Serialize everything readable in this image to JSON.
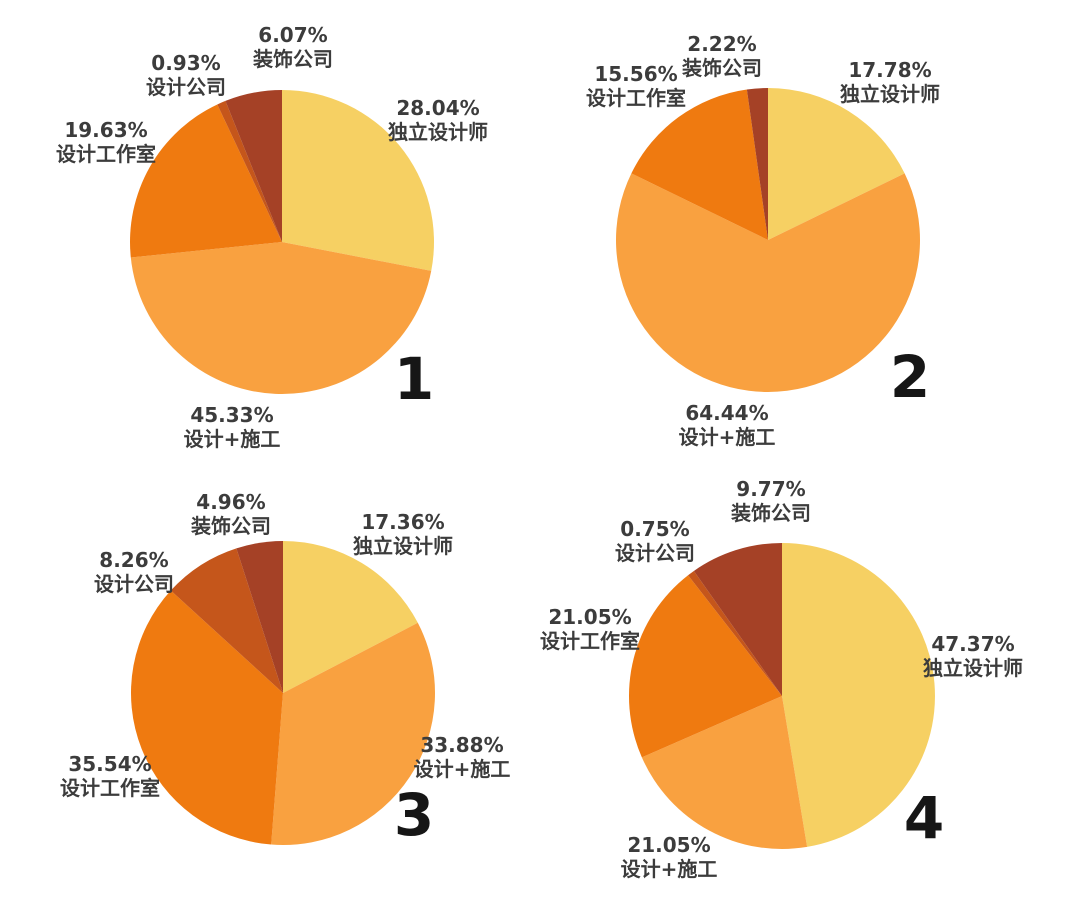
{
  "figure": {
    "background_color": "#ffffff",
    "text_color": "#3c3c3c",
    "number_color": "#161616"
  },
  "palette": {
    "independent-designer": "#F6D063",
    "design-construction": "#F9A140",
    "design-studio": "#EF7A10",
    "design-company": "#C5561B",
    "decoration-company": "#A54126"
  },
  "chart_data": [
    {
      "type": "pie",
      "index_label": "1",
      "start_angle_deg": 0,
      "direction": "clockwise",
      "slices": [
        {
          "key": "independent-designer",
          "label": "独立设计师",
          "pct": "28.04%",
          "value": 28.04,
          "color": "#F6D063"
        },
        {
          "key": "design-construction",
          "label": "设计+施工",
          "pct": "45.33%",
          "value": 45.33,
          "color": "#F9A140"
        },
        {
          "key": "design-studio",
          "label": "设计工作室",
          "pct": "19.63%",
          "value": 19.63,
          "color": "#EF7A10"
        },
        {
          "key": "design-company",
          "label": "设计公司",
          "pct": "0.93%",
          "value": 0.93,
          "color": "#C5561B"
        },
        {
          "key": "decoration-company",
          "label": "装饰公司",
          "pct": "6.07%",
          "value": 6.07,
          "color": "#A54126"
        }
      ]
    },
    {
      "type": "pie",
      "index_label": "2",
      "start_angle_deg": 0,
      "direction": "clockwise",
      "slices": [
        {
          "key": "independent-designer",
          "label": "独立设计师",
          "pct": "17.78%",
          "value": 17.78,
          "color": "#F6D063"
        },
        {
          "key": "design-construction",
          "label": "设计+施工",
          "pct": "64.44%",
          "value": 64.44,
          "color": "#F9A140"
        },
        {
          "key": "design-studio",
          "label": "设计工作室",
          "pct": "15.56%",
          "value": 15.56,
          "color": "#EF7A10"
        },
        {
          "key": "decoration-company",
          "label": "装饰公司",
          "pct": "2.22%",
          "value": 2.22,
          "color": "#A54126"
        }
      ]
    },
    {
      "type": "pie",
      "index_label": "3",
      "start_angle_deg": 0,
      "direction": "clockwise",
      "slices": [
        {
          "key": "independent-designer",
          "label": "独立设计师",
          "pct": "17.36%",
          "value": 17.36,
          "color": "#F6D063"
        },
        {
          "key": "design-construction",
          "label": "设计+施工",
          "pct": "33.88%",
          "value": 33.88,
          "color": "#F9A140"
        },
        {
          "key": "design-studio",
          "label": "设计工作室",
          "pct": "35.54%",
          "value": 35.54,
          "color": "#EF7A10"
        },
        {
          "key": "design-company",
          "label": "设计公司",
          "pct": "8.26%",
          "value": 8.26,
          "color": "#C5561B"
        },
        {
          "key": "decoration-company",
          "label": "装饰公司",
          "pct": "4.96%",
          "value": 4.96,
          "color": "#A54126"
        }
      ]
    },
    {
      "type": "pie",
      "index_label": "4",
      "start_angle_deg": 0,
      "direction": "clockwise",
      "slices": [
        {
          "key": "independent-designer",
          "label": "独立设计师",
          "pct": "47.37%",
          "value": 47.37,
          "color": "#F6D063"
        },
        {
          "key": "design-construction",
          "label": "设计+施工",
          "pct": "21.05%",
          "value": 21.05,
          "color": "#F9A140"
        },
        {
          "key": "design-studio",
          "label": "设计工作室",
          "pct": "21.05%",
          "value": 21.05,
          "color": "#EF7A10"
        },
        {
          "key": "design-company",
          "label": "设计公司",
          "pct": "0.75%",
          "value": 0.75,
          "color": "#C5561B"
        },
        {
          "key": "decoration-company",
          "label": "装饰公司",
          "pct": "9.77%",
          "value": 9.77,
          "color": "#A54126"
        }
      ]
    }
  ]
}
